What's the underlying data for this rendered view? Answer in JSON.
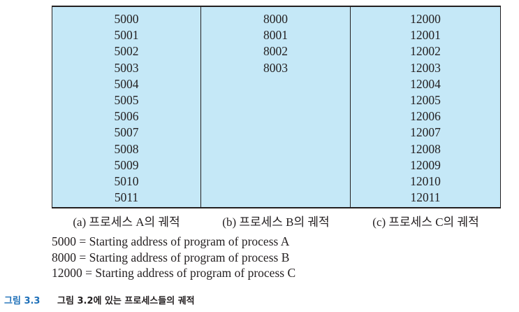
{
  "columns": [
    {
      "addresses": [
        "5000",
        "5001",
        "5002",
        "5003",
        "5004",
        "5005",
        "5006",
        "5007",
        "5008",
        "5009",
        "5010",
        "5011"
      ],
      "caption": "(a) 프로세스 A의 궤적"
    },
    {
      "addresses": [
        "8000",
        "8001",
        "8002",
        "8003"
      ],
      "caption": "(b) 프로세스 B의 궤적"
    },
    {
      "addresses": [
        "12000",
        "12001",
        "12002",
        "12003",
        "12004",
        "12005",
        "12006",
        "12007",
        "12008",
        "12009",
        "12010",
        "12011"
      ],
      "caption": "(c) 프로세스 C의 궤적"
    }
  ],
  "legend": [
    "5000 = Starting address of program of process A",
    "8000 = Starting address of program of process B",
    "12000 = Starting address of program of process C"
  ],
  "figure": {
    "label": "그림 3.3",
    "text": "그림 3.2에 있는 프로세스들의 궤적"
  },
  "colors": {
    "table_fill": "#c5e8f7",
    "figure_label": "#1d6fb8",
    "text": "#231f20"
  }
}
